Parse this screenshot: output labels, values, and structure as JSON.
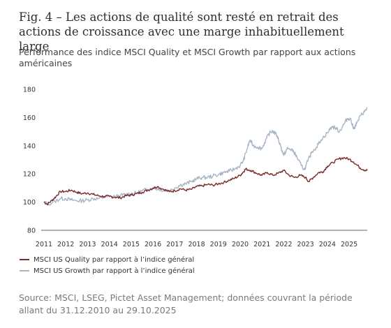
{
  "title": "Fig. 4 – Les actions de qualité sont resté en retrait des actions de croissance avec une marge inhabituellement large",
  "subtitle": "Performance des indice MSCI Quality et MSCI Growth par rapport aux actions américaines",
  "source": "Source: MSCI, LSEG, Pictet Asset Management; données couvrant la période allant du 31.12.2010 au 29.10.2025",
  "colors": {
    "quality": "#7b2b2b",
    "growth": "#a7b5c6",
    "axis": "#333333",
    "grid": "#e6e6e6"
  },
  "chart_data": {
    "type": "line",
    "ylim": [
      80,
      180
    ],
    "y_ticks": [
      "80",
      "100",
      "120",
      "140",
      "160",
      "180"
    ],
    "x_ticks": [
      "2011",
      "2012",
      "2013",
      "2014",
      "2015",
      "2016",
      "2017",
      "2018",
      "2019",
      "2020",
      "2021",
      "2022",
      "2023",
      "2024",
      "2025"
    ],
    "x_range": [
      2011.0,
      2025.83
    ],
    "grid": false,
    "legend_position": "bottom-left",
    "series": [
      {
        "name": "MSCI US Quality par rapport à l’indice général",
        "key": "quality",
        "points": [
          [
            2011.0,
            100
          ],
          [
            2011.15,
            98.5
          ],
          [
            2011.35,
            101
          ],
          [
            2011.55,
            104
          ],
          [
            2011.75,
            107.5
          ],
          [
            2012.0,
            107.5
          ],
          [
            2012.25,
            108.5
          ],
          [
            2012.5,
            107
          ],
          [
            2012.75,
            106
          ],
          [
            2013.0,
            106.5
          ],
          [
            2013.25,
            105.5
          ],
          [
            2013.5,
            104.5
          ],
          [
            2013.75,
            104
          ],
          [
            2014.0,
            104
          ],
          [
            2014.25,
            103.5
          ],
          [
            2014.5,
            103
          ],
          [
            2014.75,
            104.5
          ],
          [
            2015.0,
            105
          ],
          [
            2015.25,
            106
          ],
          [
            2015.5,
            107
          ],
          [
            2015.75,
            108.5
          ],
          [
            2016.0,
            110
          ],
          [
            2016.2,
            111
          ],
          [
            2016.5,
            109
          ],
          [
            2016.75,
            107.5
          ],
          [
            2017.0,
            108
          ],
          [
            2017.25,
            109.5
          ],
          [
            2017.5,
            108.5
          ],
          [
            2017.75,
            109
          ],
          [
            2018.0,
            111
          ],
          [
            2018.25,
            111.5
          ],
          [
            2018.5,
            112.5
          ],
          [
            2018.75,
            112
          ],
          [
            2019.0,
            113
          ],
          [
            2019.25,
            114
          ],
          [
            2019.5,
            115.5
          ],
          [
            2019.75,
            117
          ],
          [
            2020.0,
            119
          ],
          [
            2020.15,
            121.5
          ],
          [
            2020.25,
            123.5
          ],
          [
            2020.5,
            122.5
          ],
          [
            2020.75,
            120.5
          ],
          [
            2021.0,
            119
          ],
          [
            2021.25,
            121
          ],
          [
            2021.5,
            119
          ],
          [
            2021.75,
            120.5
          ],
          [
            2022.0,
            122.5
          ],
          [
            2022.25,
            119
          ],
          [
            2022.5,
            117.5
          ],
          [
            2022.75,
            119
          ],
          [
            2023.0,
            117.5
          ],
          [
            2023.15,
            114.5
          ],
          [
            2023.35,
            117.5
          ],
          [
            2023.6,
            121
          ],
          [
            2023.8,
            121.5
          ],
          [
            2024.0,
            125.5
          ],
          [
            2024.25,
            128
          ],
          [
            2024.5,
            130.5
          ],
          [
            2024.75,
            131.5
          ],
          [
            2025.0,
            130.5
          ],
          [
            2025.2,
            128.5
          ],
          [
            2025.45,
            125
          ],
          [
            2025.65,
            123
          ],
          [
            2025.83,
            122.5
          ]
        ]
      },
      {
        "name": "MSCI US Growth par rapport à l’indice général",
        "key": "growth",
        "points": [
          [
            2011.0,
            100
          ],
          [
            2011.2,
            98.5
          ],
          [
            2011.5,
            100.5
          ],
          [
            2011.75,
            102.5
          ],
          [
            2012.0,
            102.5
          ],
          [
            2012.25,
            101.5
          ],
          [
            2012.5,
            101
          ],
          [
            2012.75,
            101
          ],
          [
            2013.0,
            101.5
          ],
          [
            2013.25,
            102.5
          ],
          [
            2013.5,
            102.5
          ],
          [
            2013.75,
            103.5
          ],
          [
            2014.0,
            104
          ],
          [
            2014.25,
            104
          ],
          [
            2014.5,
            104.5
          ],
          [
            2014.75,
            105.5
          ],
          [
            2015.0,
            106
          ],
          [
            2015.25,
            106.5
          ],
          [
            2015.5,
            108
          ],
          [
            2015.75,
            109
          ],
          [
            2016.0,
            110
          ],
          [
            2016.3,
            109
          ],
          [
            2016.5,
            108.5
          ],
          [
            2016.75,
            108
          ],
          [
            2017.0,
            110
          ],
          [
            2017.25,
            112
          ],
          [
            2017.5,
            113
          ],
          [
            2017.75,
            114.5
          ],
          [
            2018.0,
            116.5
          ],
          [
            2018.25,
            117.5
          ],
          [
            2018.5,
            117.5
          ],
          [
            2018.75,
            118.5
          ],
          [
            2019.0,
            119.5
          ],
          [
            2019.25,
            121
          ],
          [
            2019.5,
            122
          ],
          [
            2019.75,
            123.5
          ],
          [
            2020.0,
            126
          ],
          [
            2020.15,
            129.5
          ],
          [
            2020.3,
            137
          ],
          [
            2020.45,
            144
          ],
          [
            2020.6,
            140
          ],
          [
            2020.8,
            139
          ],
          [
            2021.0,
            138
          ],
          [
            2021.2,
            145
          ],
          [
            2021.35,
            149
          ],
          [
            2021.5,
            150.5
          ],
          [
            2021.7,
            147
          ],
          [
            2021.85,
            140
          ],
          [
            2022.0,
            133
          ],
          [
            2022.15,
            138
          ],
          [
            2022.3,
            137.5
          ],
          [
            2022.45,
            136
          ],
          [
            2022.6,
            132
          ],
          [
            2022.8,
            126
          ],
          [
            2022.95,
            123
          ],
          [
            2023.1,
            129
          ],
          [
            2023.3,
            136
          ],
          [
            2023.5,
            139
          ],
          [
            2023.7,
            144
          ],
          [
            2024.0,
            149
          ],
          [
            2024.2,
            153.5
          ],
          [
            2024.4,
            152.5
          ],
          [
            2024.55,
            150
          ],
          [
            2024.75,
            155
          ],
          [
            2024.9,
            159
          ],
          [
            2025.05,
            159.5
          ],
          [
            2025.2,
            152
          ],
          [
            2025.35,
            156
          ],
          [
            2025.55,
            162
          ],
          [
            2025.7,
            164
          ],
          [
            2025.83,
            167
          ]
        ]
      }
    ]
  }
}
